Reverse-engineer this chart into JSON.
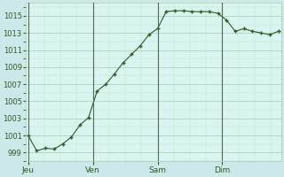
{
  "background_color": "#cde8e8",
  "plot_bg_color": "#d8f5f0",
  "line_color": "#2d5a27",
  "marker_color": "#2d5a27",
  "grid_color_major": "#b0c8b0",
  "grid_color_minor": "#c8ddc8",
  "tick_color": "#2d5a27",
  "label_color": "#2d5a27",
  "ylim": [
    998.0,
    1016.5
  ],
  "yticks": [
    999,
    1001,
    1003,
    1005,
    1007,
    1009,
    1011,
    1013,
    1015
  ],
  "xtick_labels": [
    "Jeu",
    "Ven",
    "Sam",
    "Dim"
  ],
  "vline_color": "#556655",
  "x_full": [
    0,
    1,
    2,
    3,
    4,
    5,
    6,
    7,
    8,
    9,
    10,
    11,
    12,
    13,
    14,
    15,
    16,
    17,
    18,
    19,
    20,
    21,
    22,
    23,
    24,
    25,
    26,
    27,
    28,
    29
  ],
  "y_full": [
    1001.0,
    999.2,
    999.5,
    999.4,
    1000.0,
    1000.8,
    1002.2,
    1003.1,
    1006.2,
    1007.0,
    1008.2,
    1009.5,
    1010.5,
    1011.5,
    1012.8,
    1013.5,
    1015.5,
    1015.6,
    1015.6,
    1015.5,
    1015.5,
    1015.5,
    1015.3,
    1014.5,
    1013.2,
    1013.5,
    1013.2,
    1013.0,
    1012.8,
    1013.2
  ],
  "xlim": [
    -0.3,
    29.3
  ],
  "vlines_x": [
    0,
    7.5,
    15,
    22.5
  ],
  "xtick_x": [
    0,
    7.5,
    15,
    22.5
  ]
}
